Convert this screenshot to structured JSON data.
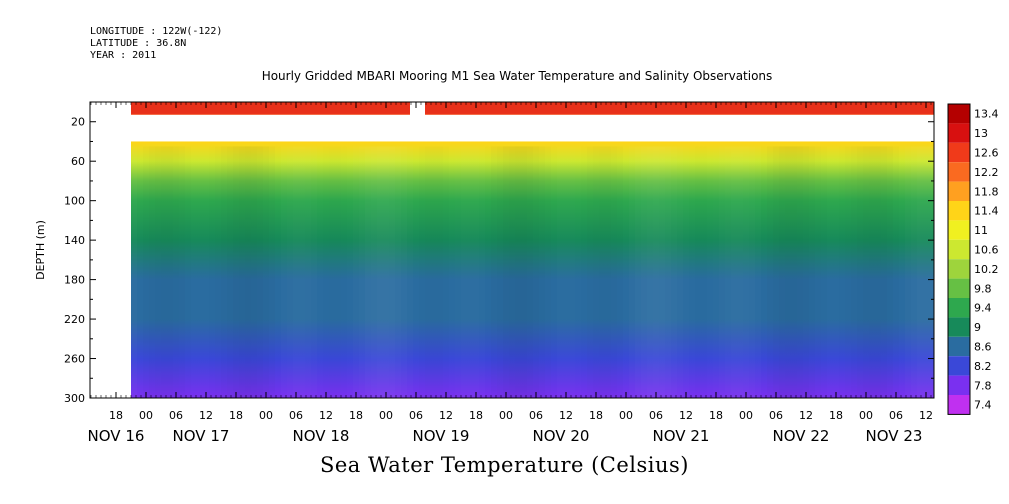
{
  "header": {
    "longitude": "LONGITUDE : 122W(-122)",
    "latitude": "LATITUDE : 36.8N",
    "year": "YEAR : 2011"
  },
  "chart_data": {
    "type": "heatmap",
    "title": "Hourly Gridded MBARI Mooring M1 Sea Water Temperature and Salinity Observations",
    "bottom_label": "Sea Water Temperature (Celsius)",
    "ylabel": "DEPTH (m)",
    "ylim": [
      300,
      0
    ],
    "y_ticks": [
      20,
      60,
      100,
      140,
      180,
      220,
      260,
      300
    ],
    "x_hour_ticks": [
      "18",
      "00",
      "06",
      "12",
      "18",
      "00",
      "06",
      "12",
      "18",
      "00",
      "06",
      "12",
      "18",
      "00",
      "06",
      "12",
      "18",
      "00",
      "06",
      "12",
      "18",
      "00",
      "06",
      "12",
      "18",
      "00",
      "06",
      "12"
    ],
    "x_day_labels": [
      "NOV 16",
      "NOV 17",
      "NOV 18",
      "NOV 19",
      "NOV 20",
      "NOV 21",
      "NOV 22",
      "NOV 23"
    ],
    "colorbar": {
      "levels": [
        13.4,
        13,
        12.6,
        12.2,
        11.8,
        11.4,
        11,
        10.6,
        10.2,
        9.8,
        9.4,
        9,
        8.6,
        8.2,
        7.8,
        7.4
      ],
      "colors": [
        "#b40000",
        "#d81010",
        "#f03a1a",
        "#fa6a20",
        "#ffa020",
        "#ffd418",
        "#f0f020",
        "#cce830",
        "#9ed43c",
        "#66c044",
        "#2ea84e",
        "#178a5a",
        "#2a6ca0",
        "#3a48d8",
        "#7a30f0",
        "#c030f0"
      ]
    },
    "depth_profile": {
      "depths_m": [
        10,
        40,
        60,
        80,
        100,
        140,
        180,
        220,
        260,
        300
      ],
      "temperatures_c": [
        12.8,
        11.5,
        10.8,
        10.0,
        9.4,
        9.2,
        8.9,
        8.6,
        8.2,
        7.8
      ]
    },
    "no_data_depth_range_m": [
      15,
      40
    ]
  }
}
